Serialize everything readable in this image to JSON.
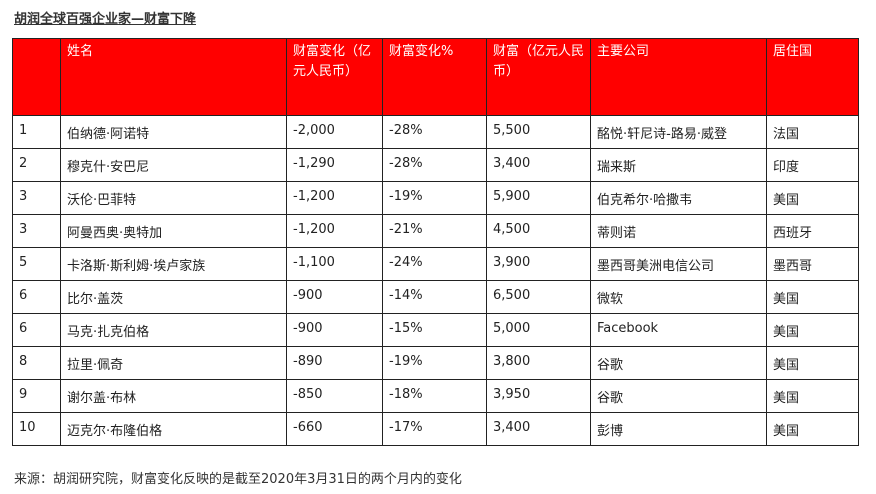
{
  "title": "胡润全球百强企业家—财富下降",
  "table": {
    "headers": [
      "",
      "姓名",
      "财富变化（亿元人民币）",
      "财富变化%",
      "财富（亿元人民币）",
      "主要公司",
      "居住国"
    ],
    "rows": [
      [
        "1",
        "伯纳德·阿诺特",
        "-2,000",
        "-28%",
        "5,500",
        "酩悦·轩尼诗-路易·威登",
        "法国"
      ],
      [
        "2",
        "穆克什·安巴尼",
        "-1,290",
        "-28%",
        "3,400",
        "瑞来斯",
        "印度"
      ],
      [
        "3",
        "沃伦·巴菲特",
        "-1,200",
        "-19%",
        "5,900",
        "伯克希尔·哈撒韦",
        "美国"
      ],
      [
        "3",
        "阿曼西奥·奥特加",
        "-1,200",
        "-21%",
        "4,500",
        "蒂则诺",
        "西班牙"
      ],
      [
        "5",
        "卡洛斯·斯利姆·埃卢家族",
        "-1,100",
        "-24%",
        "3,900",
        "墨西哥美洲电信公司",
        "墨西哥"
      ],
      [
        "6",
        "比尔·盖茨",
        "-900",
        "-14%",
        "6,500",
        "微软",
        "美国"
      ],
      [
        "6",
        "马克·扎克伯格",
        "-900",
        "-15%",
        "5,000",
        "Facebook",
        "美国"
      ],
      [
        "8",
        "拉里·佩奇",
        "-890",
        "-19%",
        "3,800",
        "谷歌",
        "美国"
      ],
      [
        "9",
        "谢尔盖·布林",
        "-850",
        "-18%",
        "3,950",
        "谷歌",
        "美国"
      ],
      [
        "10",
        "迈克尔·布隆伯格",
        "-660",
        "-17%",
        "3,400",
        "彭博",
        "美国"
      ]
    ]
  },
  "footnote": "来源：胡润研究院，财富变化反映的是截至2020年3月31日的两个月内的变化",
  "colors": {
    "header_bg": "#ff0000",
    "header_text": "#ffffff",
    "border": "#222222"
  }
}
